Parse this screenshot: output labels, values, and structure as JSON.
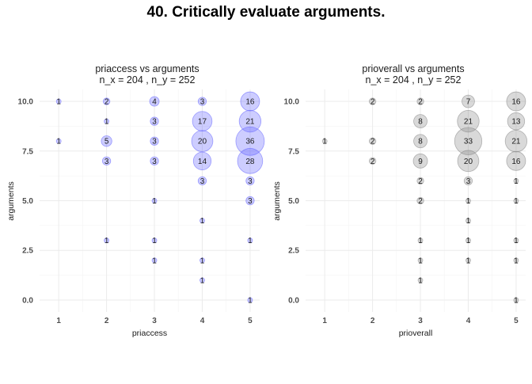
{
  "title": "40. Critically evaluate arguments.",
  "chart_data": [
    {
      "type": "scatter",
      "title": "priaccess vs arguments",
      "subtitle": "n_x = 204 , n_y = 252",
      "xlabel": "priaccess",
      "ylabel": "arguments",
      "x_ticks": [
        "1",
        "2",
        "3",
        "4",
        "5"
      ],
      "y_ticks": [
        "0.0",
        "2.5",
        "5.0",
        "7.5",
        "10.0"
      ],
      "xlim": [
        0.6,
        5.2
      ],
      "ylim": [
        -0.6,
        10.6
      ],
      "grid": true,
      "fill_color": "#5b5bff",
      "points": [
        {
          "x": 1,
          "y": 10,
          "n": 1
        },
        {
          "x": 1,
          "y": 8,
          "n": 1
        },
        {
          "x": 2,
          "y": 10,
          "n": 2
        },
        {
          "x": 2,
          "y": 9,
          "n": 1
        },
        {
          "x": 2,
          "y": 8,
          "n": 5
        },
        {
          "x": 2,
          "y": 7,
          "n": 3
        },
        {
          "x": 2,
          "y": 3,
          "n": 1
        },
        {
          "x": 3,
          "y": 10,
          "n": 4
        },
        {
          "x": 3,
          "y": 9,
          "n": 3
        },
        {
          "x": 3,
          "y": 8,
          "n": 3
        },
        {
          "x": 3,
          "y": 7,
          "n": 3
        },
        {
          "x": 3,
          "y": 5,
          "n": 1
        },
        {
          "x": 3,
          "y": 3,
          "n": 1
        },
        {
          "x": 3,
          "y": 2,
          "n": 1
        },
        {
          "x": 4,
          "y": 10,
          "n": 3
        },
        {
          "x": 4,
          "y": 9,
          "n": 17
        },
        {
          "x": 4,
          "y": 8,
          "n": 20
        },
        {
          "x": 4,
          "y": 7,
          "n": 14
        },
        {
          "x": 4,
          "y": 6,
          "n": 3
        },
        {
          "x": 4,
          "y": 4,
          "n": 1
        },
        {
          "x": 4,
          "y": 2,
          "n": 1
        },
        {
          "x": 4,
          "y": 1,
          "n": 1
        },
        {
          "x": 5,
          "y": 10,
          "n": 16
        },
        {
          "x": 5,
          "y": 9,
          "n": 21
        },
        {
          "x": 5,
          "y": 8,
          "n": 36
        },
        {
          "x": 5,
          "y": 7,
          "n": 28
        },
        {
          "x": 5,
          "y": 6,
          "n": 3
        },
        {
          "x": 5,
          "y": 5,
          "n": 3
        },
        {
          "x": 5,
          "y": 3,
          "n": 1
        },
        {
          "x": 5,
          "y": 0,
          "n": 1
        }
      ]
    },
    {
      "type": "scatter",
      "title": "prioverall vs arguments",
      "subtitle": "n_x = 204 , n_y = 252",
      "xlabel": "prioverall",
      "ylabel": "arguments",
      "x_ticks": [
        "1",
        "2",
        "3",
        "4",
        "5"
      ],
      "y_ticks": [
        "0.0",
        "2.5",
        "5.0",
        "7.5",
        "10.0"
      ],
      "xlim": [
        0.6,
        5.2
      ],
      "ylim": [
        -0.6,
        10.6
      ],
      "grid": true,
      "fill_color": "#808080",
      "points": [
        {
          "x": 1,
          "y": 8,
          "n": 1
        },
        {
          "x": 2,
          "y": 10,
          "n": 2
        },
        {
          "x": 2,
          "y": 8,
          "n": 2
        },
        {
          "x": 2,
          "y": 7,
          "n": 2
        },
        {
          "x": 3,
          "y": 10,
          "n": 2
        },
        {
          "x": 3,
          "y": 9,
          "n": 8
        },
        {
          "x": 3,
          "y": 8,
          "n": 8
        },
        {
          "x": 3,
          "y": 7,
          "n": 9
        },
        {
          "x": 3,
          "y": 6,
          "n": 2
        },
        {
          "x": 3,
          "y": 5,
          "n": 2
        },
        {
          "x": 3,
          "y": 3,
          "n": 1
        },
        {
          "x": 3,
          "y": 2,
          "n": 1
        },
        {
          "x": 3,
          "y": 1,
          "n": 1
        },
        {
          "x": 4,
          "y": 10,
          "n": 7
        },
        {
          "x": 4,
          "y": 9,
          "n": 21
        },
        {
          "x": 4,
          "y": 8,
          "n": 33
        },
        {
          "x": 4,
          "y": 7,
          "n": 20
        },
        {
          "x": 4,
          "y": 6,
          "n": 3
        },
        {
          "x": 4,
          "y": 5,
          "n": 1
        },
        {
          "x": 4,
          "y": 4,
          "n": 1
        },
        {
          "x": 4,
          "y": 3,
          "n": 1
        },
        {
          "x": 4,
          "y": 2,
          "n": 1
        },
        {
          "x": 5,
          "y": 10,
          "n": 16
        },
        {
          "x": 5,
          "y": 9,
          "n": 13
        },
        {
          "x": 5,
          "y": 8,
          "n": 21
        },
        {
          "x": 5,
          "y": 7,
          "n": 16
        },
        {
          "x": 5,
          "y": 6,
          "n": 1
        },
        {
          "x": 5,
          "y": 5,
          "n": 1
        },
        {
          "x": 5,
          "y": 3,
          "n": 1
        },
        {
          "x": 5,
          "y": 2,
          "n": 1
        },
        {
          "x": 5,
          "y": 0,
          "n": 1
        }
      ]
    }
  ]
}
